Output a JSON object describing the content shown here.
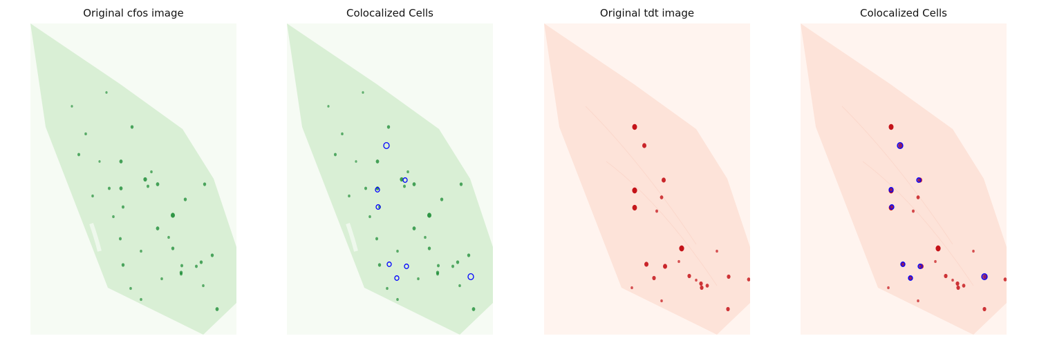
{
  "panels": [
    {
      "title": "Original cfos image",
      "channel": "cfos",
      "show_overlay": false
    },
    {
      "title": "Colocalized Cells",
      "channel": "cfos",
      "show_overlay": true
    },
    {
      "title": "Original tdt image",
      "channel": "tdt",
      "show_overlay": false
    },
    {
      "title": "Colocalized Cells",
      "channel": "tdt",
      "show_overlay": true
    }
  ],
  "colors": {
    "cfos_background": "#f6fbf4",
    "cfos_tissue": "#d9efd5",
    "cfos_cell": "#1a8a33",
    "tdt_background": "#fff4ef",
    "tdt_tissue": "#fde3d9",
    "tdt_cell": "#c41218",
    "overlay_outline": "#0000ff"
  }
}
